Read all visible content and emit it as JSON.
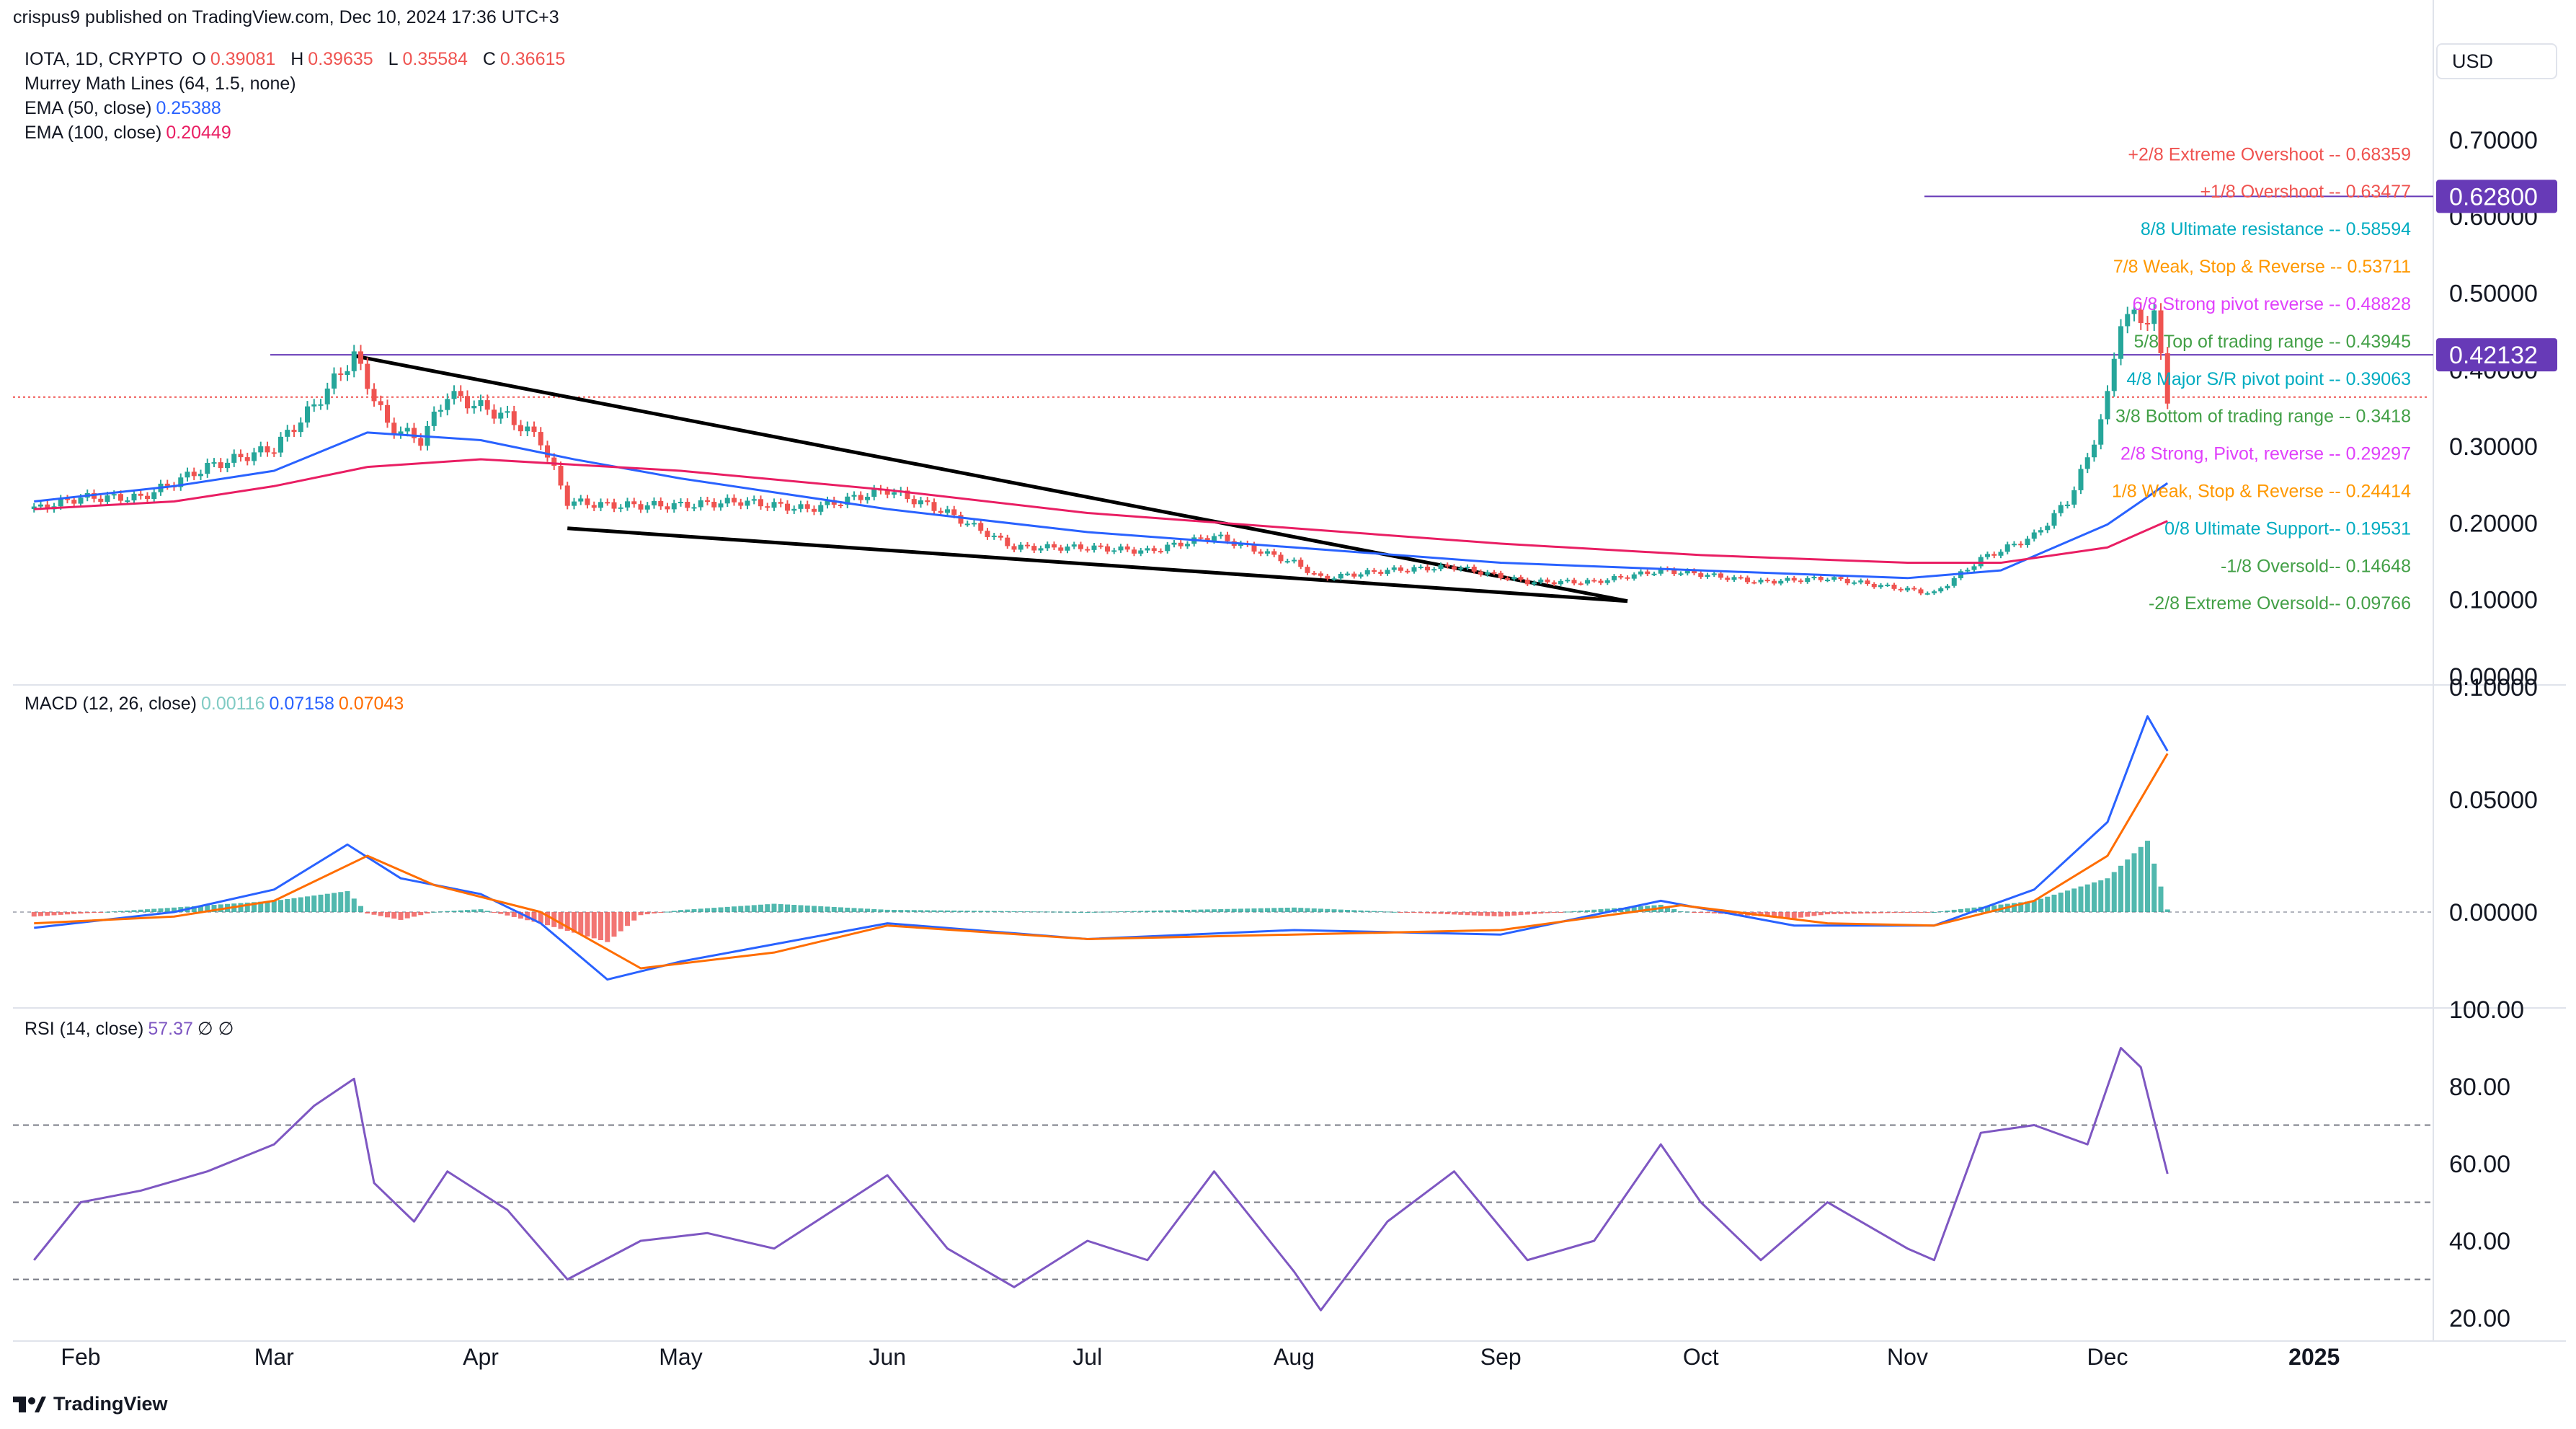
{
  "header": {
    "published": "crispus9 published on TradingView.com, Dec 10, 2024 17:36 UTC+3",
    "currency": "USD"
  },
  "legend": {
    "symbol": "IOTA, 1D, CRYPTO",
    "o_label": "O",
    "o": "0.39081",
    "h_label": "H",
    "h": "0.39635",
    "l_label": "L",
    "l": "0.35584",
    "c_label": "C",
    "c": "0.36615",
    "murrey": "Murrey Math Lines (64, 1.5, none)",
    "ema50": "EMA (50, close)",
    "ema50_value": "0.25388",
    "ema100": "EMA (100, close)",
    "ema100_value": "0.20449",
    "macd": "MACD (12, 26, close)",
    "macd_hist": "0.00116",
    "macd_line": "0.07158",
    "macd_signal": "0.07043",
    "rsi": "RSI (14, close)",
    "rsi_value": "57.37",
    "rsi_extra": "∅ ∅"
  },
  "colors": {
    "up": "#26a69a",
    "down": "#ef5350",
    "ema50": "#2962ff",
    "ema100": "#e91e63",
    "macd": "#2962ff",
    "signal": "#ff6d00",
    "rsi": "#7e57c2",
    "badge": "#673ab7"
  },
  "chart_data": {
    "type": "line",
    "title": "IOTA, 1D, CRYPTO",
    "y_axis_ticks": [
      "0.70000",
      "0.60000",
      "0.50000",
      "0.40000",
      "0.30000",
      "0.20000",
      "0.10000",
      "0.00000"
    ],
    "x_axis_ticks": [
      "Feb",
      "Mar",
      "Apr",
      "May",
      "Jun",
      "Jul",
      "Aug",
      "Sep",
      "Oct",
      "Nov",
      "Dec",
      "2025"
    ],
    "price_badges": [
      "0.62800",
      "0.42132"
    ],
    "murrey_levels": [
      {
        "label": "+2/8 Extreme Overshoot --  0.68359",
        "value": 0.68359,
        "color": "#ef5350"
      },
      {
        "label": "+1/8 Overshoot --  0.63477",
        "value": 0.63477,
        "color": "#ef5350"
      },
      {
        "label": "8/8 Ultimate resistance --  0.58594",
        "value": 0.58594,
        "color": "#00acc1"
      },
      {
        "label": "7/8 Weak, Stop & Reverse --  0.53711",
        "value": 0.53711,
        "color": "#ff9800"
      },
      {
        "label": "6/8 Strong pivot reverse --  0.48828",
        "value": 0.48828,
        "color": "#e040fb"
      },
      {
        "label": "5/8 Top of trading range --  0.43945",
        "value": 0.43945,
        "color": "#43a047"
      },
      {
        "label": "4/8 Major S/R pivot point --  0.39063",
        "value": 0.39063,
        "color": "#00acc1"
      },
      {
        "label": "3/8 Bottom of trading range --  0.3418",
        "value": 0.3418,
        "color": "#43a047"
      },
      {
        "label": "2/8 Strong, Pivot, reverse --  0.29297",
        "value": 0.29297,
        "color": "#e040fb"
      },
      {
        "label": "1/8 Weak, Stop & Reverse --  0.24414",
        "value": 0.24414,
        "color": "#ff9800"
      },
      {
        "label": "0/8 Ultimate Support--  0.19531",
        "value": 0.19531,
        "color": "#00acc1"
      },
      {
        "label": "-1/8 Oversold--  0.14648",
        "value": 0.14648,
        "color": "#43a047"
      },
      {
        "label": "-2/8 Extreme Oversold--  0.09766",
        "value": 0.09766,
        "color": "#43a047"
      }
    ],
    "price_series": {
      "name": "IOTA",
      "points": [
        [
          "Jan 25",
          0.22
        ],
        [
          "Feb 1",
          0.235
        ],
        [
          "Feb 10",
          0.235
        ],
        [
          "Feb 20",
          0.275
        ],
        [
          "Mar 1",
          0.3
        ],
        [
          "Mar 7",
          0.355
        ],
        [
          "Mar 13",
          0.42
        ],
        [
          "Mar 18",
          0.33
        ],
        [
          "Mar 23",
          0.31
        ],
        [
          "Mar 27",
          0.37
        ],
        [
          "Apr 5",
          0.34
        ],
        [
          "Apr 10",
          0.31
        ],
        [
          "Apr 14",
          0.23
        ],
        [
          "Apr 20",
          0.225
        ],
        [
          "May 1",
          0.225
        ],
        [
          "May 10",
          0.23
        ],
        [
          "May 20",
          0.22
        ],
        [
          "Jun 1",
          0.245
        ],
        [
          "Jun 10",
          0.215
        ],
        [
          "Jun 20",
          0.17
        ],
        [
          "Jul 1",
          0.17
        ],
        [
          "Jul 10",
          0.165
        ],
        [
          "Jul 20",
          0.185
        ],
        [
          "Aug 1",
          0.15
        ],
        [
          "Aug 5",
          0.13
        ],
        [
          "Aug 15",
          0.14
        ],
        [
          "Aug 25",
          0.145
        ],
        [
          "Sep 5",
          0.125
        ],
        [
          "Sep 15",
          0.125
        ],
        [
          "Sep 25",
          0.14
        ],
        [
          "Oct 1",
          0.135
        ],
        [
          "Oct 10",
          0.125
        ],
        [
          "Oct 20",
          0.13
        ],
        [
          "Nov 1",
          0.115
        ],
        [
          "Nov 5",
          0.11
        ],
        [
          "Nov 12",
          0.155
        ],
        [
          "Nov 20",
          0.185
        ],
        [
          "Nov 25",
          0.23
        ],
        [
          "Nov 28",
          0.285
        ],
        [
          "Dec 1",
          0.365
        ],
        [
          "Dec 3",
          0.47
        ],
        [
          "Dec 5",
          0.47
        ],
        [
          "Dec 8",
          0.47
        ],
        [
          "Dec 10",
          0.36615
        ]
      ]
    },
    "ema50_series": {
      "name": "EMA (50, close)",
      "points": [
        [
          "Jan 25",
          0.23
        ],
        [
          "Feb 15",
          0.25
        ],
        [
          "Mar 1",
          0.27
        ],
        [
          "Mar 15",
          0.32
        ],
        [
          "Apr 1",
          0.31
        ],
        [
          "Apr 15",
          0.285
        ],
        [
          "May 1",
          0.26
        ],
        [
          "Jun 1",
          0.22
        ],
        [
          "Jul 1",
          0.19
        ],
        [
          "Aug 1",
          0.17
        ],
        [
          "Sep 1",
          0.15
        ],
        [
          "Oct 1",
          0.14
        ],
        [
          "Nov 1",
          0.13
        ],
        [
          "Nov 15",
          0.14
        ],
        [
          "Dec 1",
          0.2
        ],
        [
          "Dec 10",
          0.25388
        ]
      ]
    },
    "ema100_series": {
      "name": "EMA (100, close)",
      "points": [
        [
          "Jan 25",
          0.22
        ],
        [
          "Feb 15",
          0.23
        ],
        [
          "Mar 1",
          0.25
        ],
        [
          "Mar 15",
          0.275
        ],
        [
          "Apr 1",
          0.285
        ],
        [
          "May 1",
          0.27
        ],
        [
          "Jun 1",
          0.245
        ],
        [
          "Jul 1",
          0.215
        ],
        [
          "Aug 1",
          0.195
        ],
        [
          "Sep 1",
          0.175
        ],
        [
          "Oct 1",
          0.16
        ],
        [
          "Nov 1",
          0.15
        ],
        [
          "Nov 15",
          0.15
        ],
        [
          "Dec 1",
          0.17
        ],
        [
          "Dec 10",
          0.20449
        ]
      ]
    },
    "macd_axis_ticks": [
      "0.10000",
      "0.05000",
      "0.00000"
    ],
    "macd_series": {
      "name": "MACD (12, 26, close)",
      "points": [
        [
          "Jan 25",
          -0.007
        ],
        [
          "Feb 15",
          0.0
        ],
        [
          "Mar 1",
          0.01
        ],
        [
          "Mar 12",
          0.03
        ],
        [
          "Mar 20",
          0.015
        ],
        [
          "Apr 1",
          0.008
        ],
        [
          "Apr 10",
          -0.005
        ],
        [
          "Apr 20",
          -0.03
        ],
        [
          "May 1",
          -0.022
        ],
        [
          "Jun 1",
          -0.005
        ],
        [
          "Jul 1",
          -0.012
        ],
        [
          "Aug 1",
          -0.008
        ],
        [
          "Sep 1",
          -0.01
        ],
        [
          "Sep 25",
          0.005
        ],
        [
          "Oct 15",
          -0.006
        ],
        [
          "Nov 5",
          -0.006
        ],
        [
          "Nov 20",
          0.01
        ],
        [
          "Dec 1",
          0.04
        ],
        [
          "Dec 7",
          0.087
        ],
        [
          "Dec 10",
          0.07158
        ]
      ]
    },
    "signal_series": {
      "name": "Signal",
      "points": [
        [
          "Jan 25",
          -0.005
        ],
        [
          "Feb 15",
          -0.002
        ],
        [
          "Mar 1",
          0.005
        ],
        [
          "Mar 15",
          0.025
        ],
        [
          "Mar 25",
          0.012
        ],
        [
          "Apr 10",
          0.0
        ],
        [
          "Apr 25",
          -0.025
        ],
        [
          "May 15",
          -0.018
        ],
        [
          "Jun 1",
          -0.006
        ],
        [
          "Jul 1",
          -0.012
        ],
        [
          "Aug 1",
          -0.01
        ],
        [
          "Sep 1",
          -0.008
        ],
        [
          "Sep 28",
          0.003
        ],
        [
          "Oct 20",
          -0.005
        ],
        [
          "Nov 5",
          -0.006
        ],
        [
          "Nov 20",
          0.005
        ],
        [
          "Dec 1",
          0.025
        ],
        [
          "Dec 10",
          0.07043
        ]
      ]
    },
    "rsi_axis_ticks": [
      "100.00",
      "80.00",
      "60.00",
      "40.00",
      "20.00"
    ],
    "rsi_levels": [
      70,
      50,
      30
    ],
    "rsi_series": {
      "name": "RSI (14, close)",
      "points": [
        [
          "Jan 25",
          35
        ],
        [
          "Feb 1",
          50
        ],
        [
          "Feb 10",
          53
        ],
        [
          "Feb 20",
          58
        ],
        [
          "Mar 1",
          65
        ],
        [
          "Mar 7",
          75
        ],
        [
          "Mar 13",
          82
        ],
        [
          "Mar 16",
          55
        ],
        [
          "Mar 22",
          45
        ],
        [
          "Mar 27",
          58
        ],
        [
          "Apr 5",
          48
        ],
        [
          "Apr 14",
          30
        ],
        [
          "Apr 25",
          40
        ],
        [
          "May 5",
          42
        ],
        [
          "May 15",
          38
        ],
        [
          "Jun 1",
          57
        ],
        [
          "Jun 10",
          38
        ],
        [
          "Jun 20",
          28
        ],
        [
          "Jul 1",
          40
        ],
        [
          "Jul 10",
          35
        ],
        [
          "Jul 20",
          58
        ],
        [
          "Aug 1",
          32
        ],
        [
          "Aug 5",
          22
        ],
        [
          "Aug 15",
          45
        ],
        [
          "Aug 25",
          58
        ],
        [
          "Sep 5",
          35
        ],
        [
          "Sep 15",
          40
        ],
        [
          "Sep 25",
          65
        ],
        [
          "Oct 1",
          50
        ],
        [
          "Oct 10",
          35
        ],
        [
          "Oct 20",
          50
        ],
        [
          "Nov 1",
          38
        ],
        [
          "Nov 5",
          35
        ],
        [
          "Nov 12",
          68
        ],
        [
          "Nov 20",
          70
        ],
        [
          "Nov 28",
          65
        ],
        [
          "Dec 3",
          90
        ],
        [
          "Dec 6",
          85
        ],
        [
          "Dec 10",
          57.37
        ]
      ]
    }
  }
}
